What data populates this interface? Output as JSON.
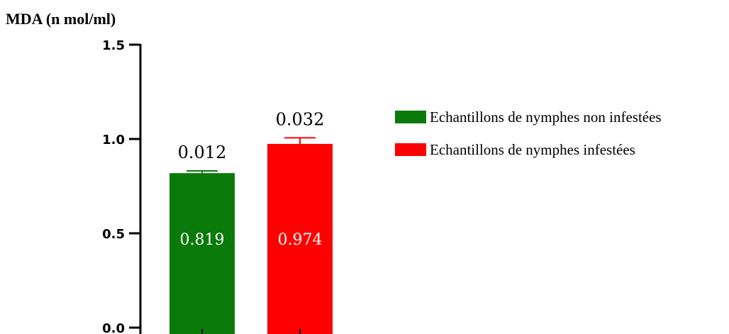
{
  "chart_data": {
    "type": "bar",
    "title": "",
    "ylabel": "MDA (n mol/ml)",
    "xlabel": "",
    "ylim": [
      0,
      1.5
    ],
    "yticks": [
      "0.0",
      "0.5",
      "1.0",
      "1.5"
    ],
    "categories": [
      "Echantillons de nymphes non infestées",
      "Echantillons de nymphes infestées"
    ],
    "values": [
      0.819,
      0.974
    ],
    "value_labels": [
      "0.819",
      "0.974"
    ],
    "errors": [
      0.012,
      0.032
    ],
    "error_labels": [
      "0.012",
      "0.032"
    ],
    "colors": [
      "#0a7a0a",
      "#ff0000"
    ],
    "legend": {
      "position": "right",
      "entries": [
        "Echantillons de nymphes non infestées",
        "Echantillons de nymphes infestées"
      ]
    }
  }
}
